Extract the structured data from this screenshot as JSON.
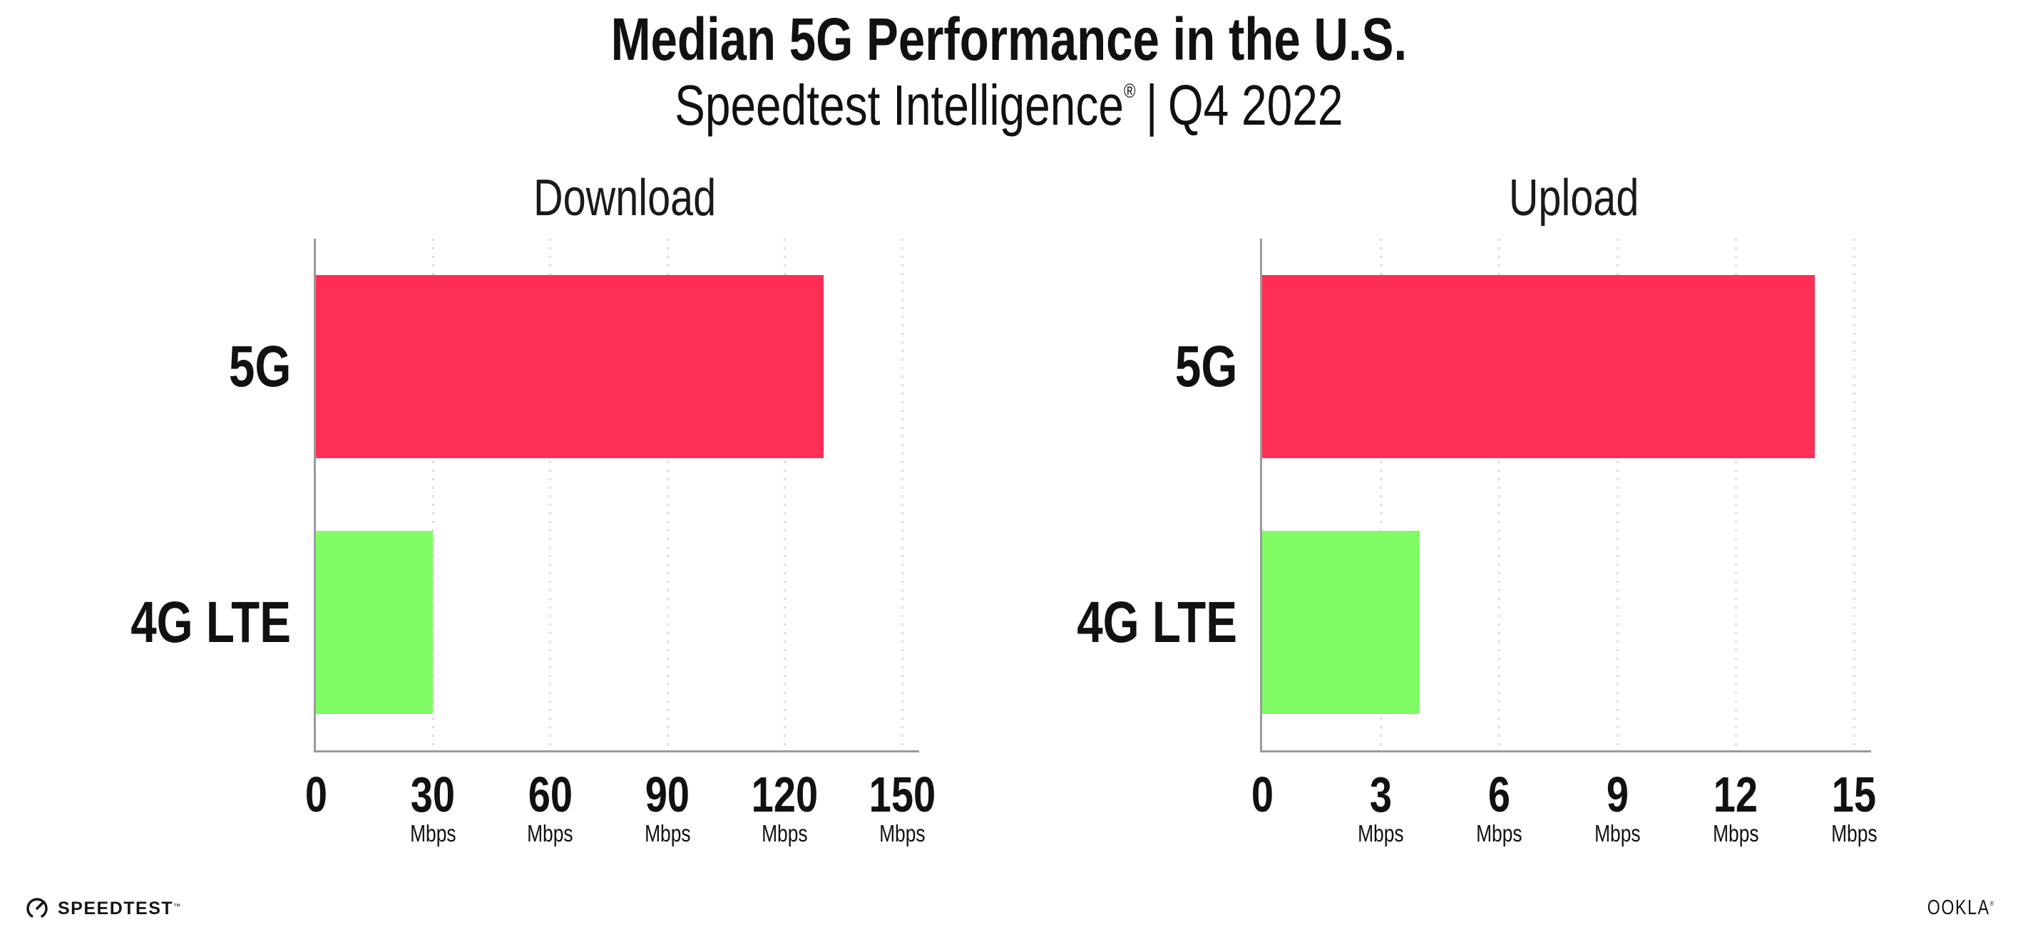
{
  "header": {
    "title": "Median 5G Performance in the U.S.",
    "subtitle_brand": "Speedtest Intelligence",
    "subtitle_reg": "®",
    "subtitle_sep": "|",
    "subtitle_period": "Q4 2022"
  },
  "footer": {
    "speedtest_label": "SPEEDTEST",
    "speedtest_tm": "™",
    "ookla_label": "OOKLA",
    "ookla_reg": "®"
  },
  "colors": {
    "bar_5g": "#FF2E55",
    "bar_4g": "#7FFC64",
    "gridline": "#DCDCE8",
    "axis": "#9B9B9B",
    "text": "#111111"
  },
  "chart_data": [
    {
      "type": "bar",
      "orientation": "horizontal",
      "title": "Download",
      "categories": [
        "5G",
        "4G LTE"
      ],
      "values": [
        130,
        30
      ],
      "unit": "Mbps",
      "xlim": [
        0,
        150
      ],
      "xticks": [
        0,
        30,
        60,
        90,
        120,
        150
      ],
      "bar_colors": [
        "#FF2E55",
        "#7FFC64"
      ],
      "grid": "dotted-vertical",
      "legend": "none"
    },
    {
      "type": "bar",
      "orientation": "horizontal",
      "title": "Upload",
      "categories": [
        "5G",
        "4G LTE"
      ],
      "values": [
        14,
        4
      ],
      "unit": "Mbps",
      "xlim": [
        0,
        15
      ],
      "xticks": [
        0,
        3,
        6,
        9,
        12,
        15
      ],
      "bar_colors": [
        "#FF2E55",
        "#7FFC64"
      ],
      "grid": "dotted-vertical",
      "legend": "none"
    }
  ]
}
